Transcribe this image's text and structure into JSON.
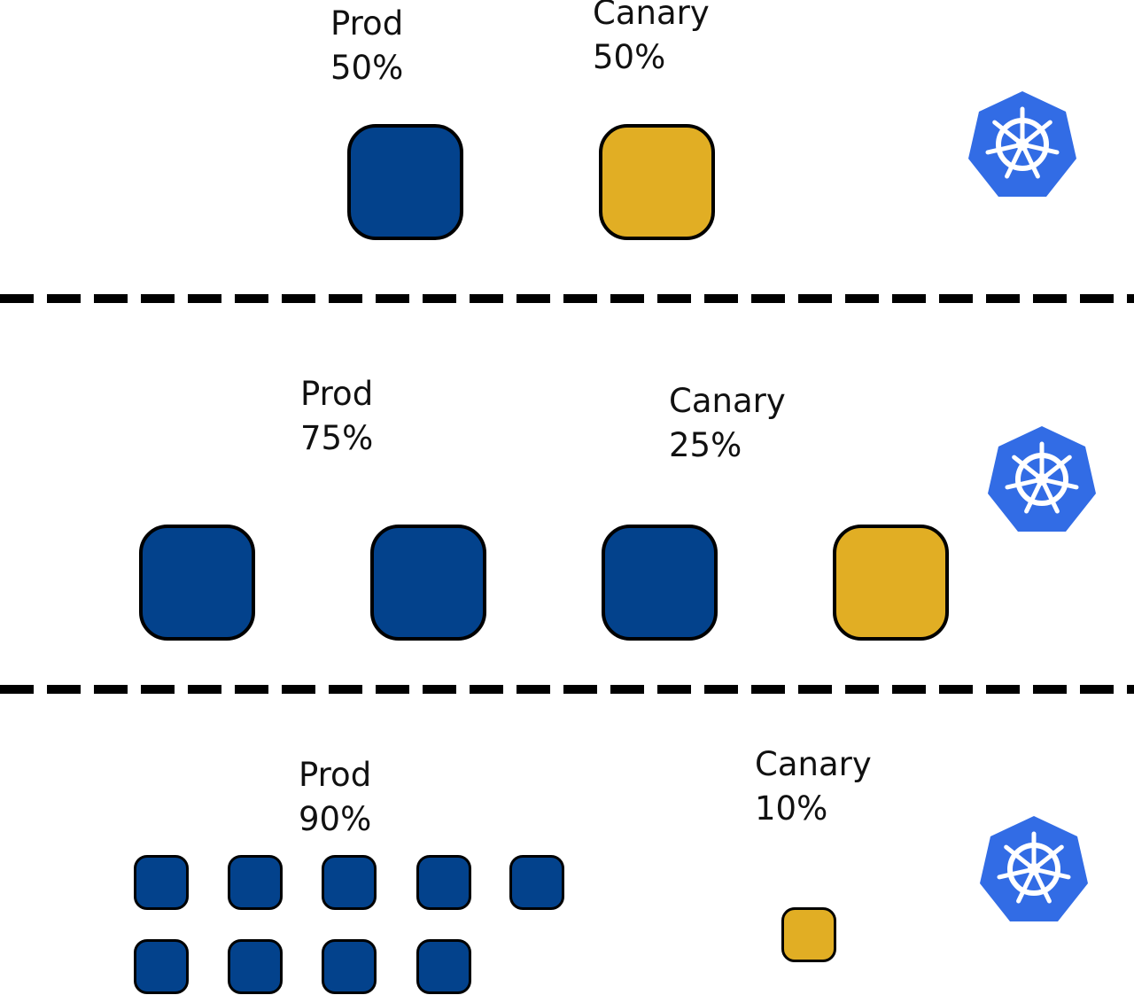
{
  "colors": {
    "prod": "#03428c",
    "canary": "#e1ae24",
    "k8s": "#326ce5"
  },
  "stages": [
    {
      "prod": {
        "name": "Prod",
        "percent": "50%"
      },
      "canary": {
        "name": "Canary",
        "percent": "50%"
      },
      "prod_pods": 1,
      "canary_pods": 1
    },
    {
      "prod": {
        "name": "Prod",
        "percent": "75%"
      },
      "canary": {
        "name": "Canary",
        "percent": "25%"
      },
      "prod_pods": 3,
      "canary_pods": 1
    },
    {
      "prod": {
        "name": "Prod",
        "percent": "90%"
      },
      "canary": {
        "name": "Canary",
        "percent": "10%"
      },
      "prod_pods": 9,
      "canary_pods": 1
    }
  ],
  "icon": "kubernetes-helm-icon"
}
